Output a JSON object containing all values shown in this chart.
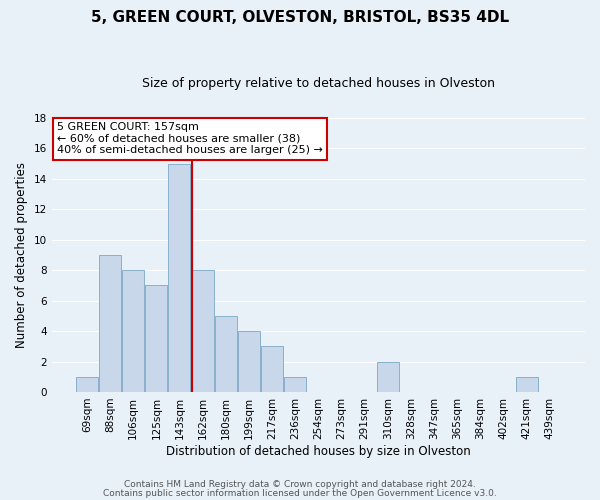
{
  "title": "5, GREEN COURT, OLVESTON, BRISTOL, BS35 4DL",
  "subtitle": "Size of property relative to detached houses in Olveston",
  "xlabel": "Distribution of detached houses by size in Olveston",
  "ylabel": "Number of detached properties",
  "bar_color": "#c8d8ea",
  "bar_edge_color": "#8ab0cc",
  "bin_labels": [
    "69sqm",
    "88sqm",
    "106sqm",
    "125sqm",
    "143sqm",
    "162sqm",
    "180sqm",
    "199sqm",
    "217sqm",
    "236sqm",
    "254sqm",
    "273sqm",
    "291sqm",
    "310sqm",
    "328sqm",
    "347sqm",
    "365sqm",
    "384sqm",
    "402sqm",
    "421sqm",
    "439sqm"
  ],
  "bar_heights": [
    1,
    9,
    8,
    7,
    15,
    8,
    5,
    4,
    3,
    1,
    0,
    0,
    0,
    2,
    0,
    0,
    0,
    0,
    0,
    1,
    0
  ],
  "ylim": [
    0,
    18
  ],
  "yticks": [
    0,
    2,
    4,
    6,
    8,
    10,
    12,
    14,
    16,
    18
  ],
  "marker_line_color": "#cc0000",
  "marker_bar_index": 5,
  "annotation_line1": "5 GREEN COURT: 157sqm",
  "annotation_line2": "← 60% of detached houses are smaller (38)",
  "annotation_line3": "40% of semi-detached houses are larger (25) →",
  "annotation_box_color": "#ffffff",
  "annotation_box_edge_color": "#cc0000",
  "footer1": "Contains HM Land Registry data © Crown copyright and database right 2024.",
  "footer2": "Contains public sector information licensed under the Open Government Licence v3.0.",
  "background_color": "#e8f0f8",
  "plot_background_color": "#e8f0f8",
  "grid_color": "#ffffff",
  "title_fontsize": 11,
  "subtitle_fontsize": 9,
  "axis_label_fontsize": 8.5,
  "tick_fontsize": 7.5,
  "annotation_fontsize": 8,
  "footer_fontsize": 6.5
}
